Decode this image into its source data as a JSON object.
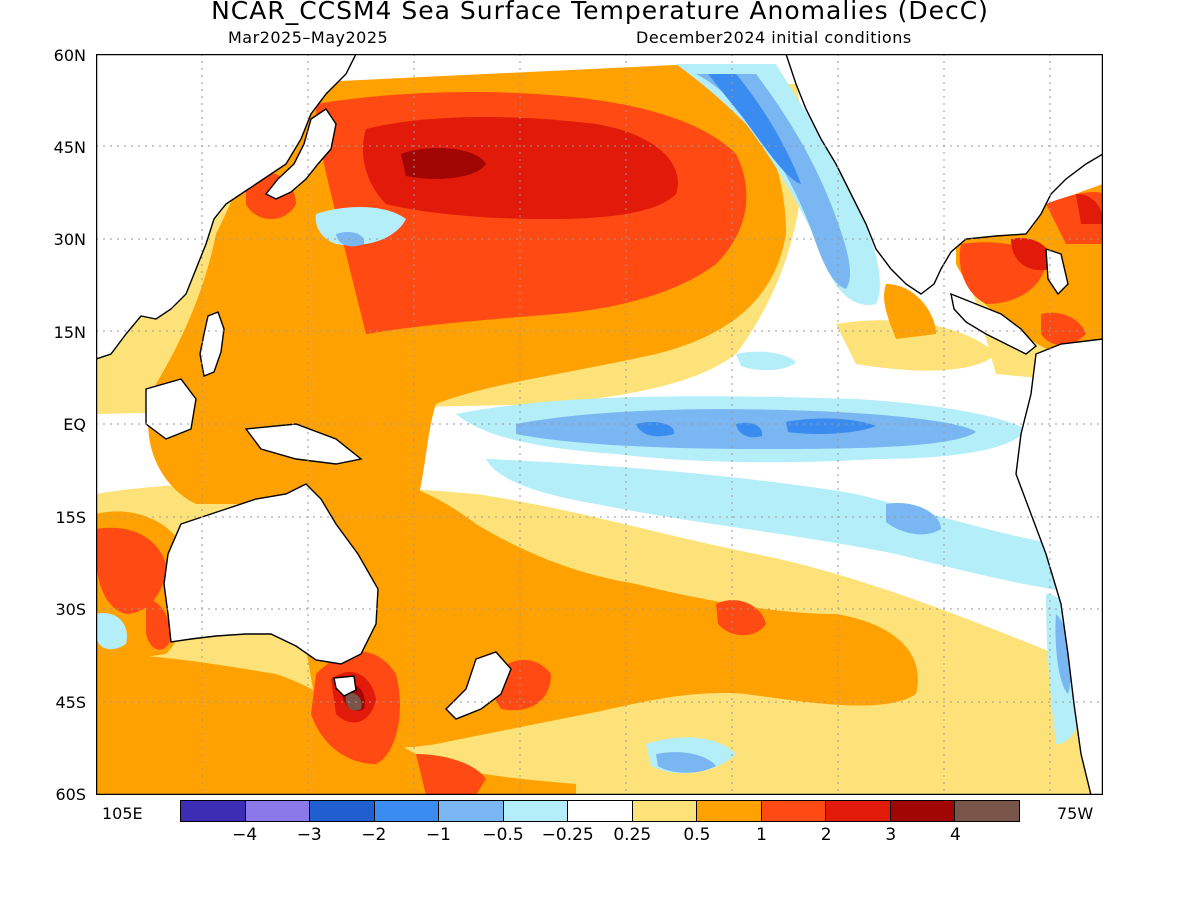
{
  "header": {
    "title": "NCAR_CCSM4 Sea Surface Temperature Anomalies (DecC)",
    "valid_period": "Mar2025–May2025",
    "initial_conditions": "December2024 initial conditions"
  },
  "axes": {
    "lat_labels": [
      "60N",
      "45N",
      "30N",
      "15N",
      "EQ",
      "15S",
      "30S",
      "45S",
      "60S"
    ],
    "lon_left": "105E",
    "lon_right": "75W"
  },
  "colorbar": {
    "colors": [
      "#3d2db4",
      "#8b78e9",
      "#1f5fd0",
      "#3a8cf0",
      "#79b6f2",
      "#b4eef8",
      "#ffffff",
      "#fde27a",
      "#ffa101",
      "#ff4a13",
      "#e11a0a",
      "#a10504",
      "#7a564a"
    ],
    "labels": [
      "−4",
      "−3",
      "−2",
      "−1",
      "−0.5",
      "−0.25",
      "0.25",
      "0.5",
      "1",
      "2",
      "3",
      "4"
    ]
  },
  "map": {
    "region": "Pacific Ocean, 105E–75W, 60S–60N",
    "palette": {
      "land": "#ffffff",
      "neutral": "#ffffff",
      "light_warm": "#fde27a",
      "warm": "#ffa101",
      "hot": "#ff4a13",
      "very_hot": "#e11a0a",
      "extreme": "#a10504",
      "max": "#7a564a",
      "cool": "#b4eef8",
      "cold": "#79b6f2",
      "colder": "#3a8cf0"
    }
  }
}
